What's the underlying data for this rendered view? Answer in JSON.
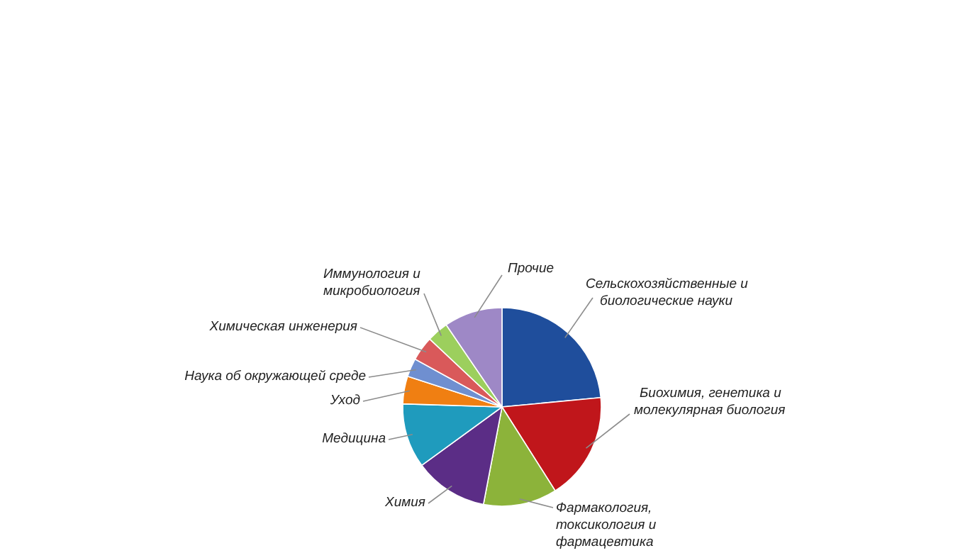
{
  "chart_data": {
    "type": "pie",
    "categories": [
      "Сельскохозяйственные и биологические науки",
      "Биохимия, генетика и молекулярная биология",
      "Фармакология, токсикология и фармацевтика",
      "Химия",
      "Медицина",
      "Уход",
      "Наука об окружающей среде",
      "Химическая инженерия",
      "Иммунология и микробиология",
      "Прочие"
    ],
    "values": [
      23.5,
      17.5,
      12,
      12,
      10.5,
      4.5,
      3,
      4,
      3.5,
      9.5
    ],
    "colors": [
      "#1f4e9c",
      "#c0161b",
      "#8cb33a",
      "#5b2d86",
      "#1f9bbd",
      "#f07f12",
      "#6f8fd0",
      "#d9595a",
      "#9ccf5d",
      "#9e88c6"
    ]
  }
}
